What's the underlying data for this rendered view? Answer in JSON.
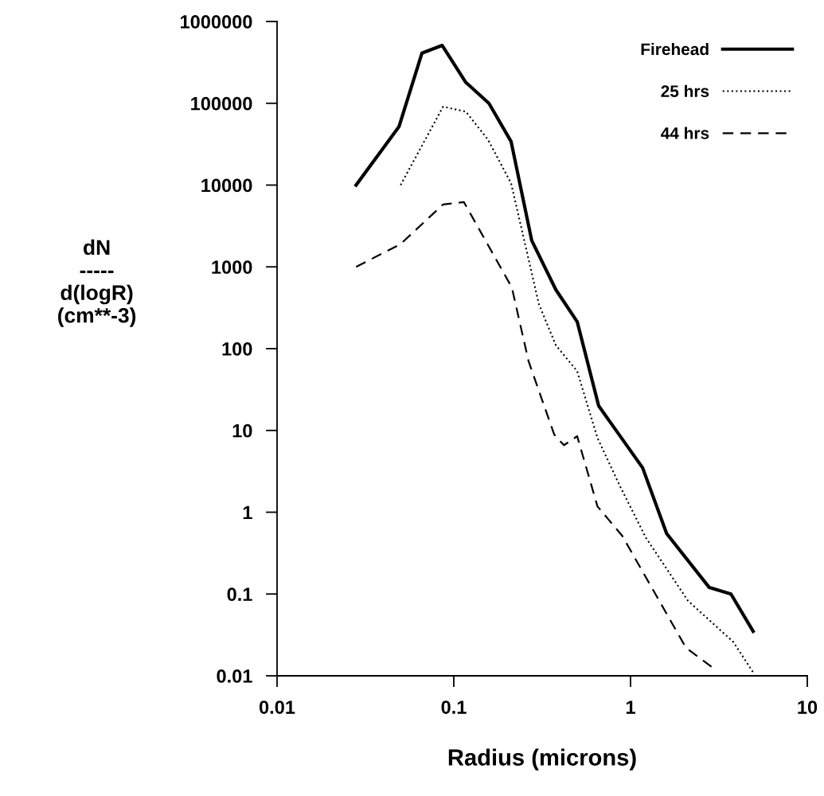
{
  "chart_data": {
    "type": "line",
    "xlabel": "Radius (microns)",
    "ylabel": "dN\n-----\nd(logR)\n(cm**-3)",
    "log": "xy",
    "xlim": [
      0.01,
      10
    ],
    "ylim": [
      0.01,
      1000000
    ],
    "xticks": [
      0.01,
      0.1,
      1,
      10
    ],
    "yticks": [
      0.01,
      0.1,
      1,
      10,
      100,
      1000,
      10000,
      100000,
      1000000
    ],
    "grid": false,
    "legend": "top right",
    "series": [
      {
        "name": "Firehead",
        "color": "#000000",
        "line_style": "solid",
        "x": [
          0.028,
          0.049,
          0.066,
          0.086,
          0.117,
          0.158,
          0.211,
          0.276,
          0.378,
          0.499,
          0.66,
          1.17,
          1.6,
          2.79,
          3.7,
          4.94
        ],
        "values": [
          10000,
          52000,
          410000,
          510000,
          180000,
          100000,
          34000,
          2100,
          525,
          214,
          20,
          3.5,
          0.55,
          0.12,
          0.1,
          0.035
        ]
      },
      {
        "name": "25 hrs",
        "color": "#000000",
        "line_style": "dotted",
        "x": [
          0.05,
          0.087,
          0.117,
          0.156,
          0.211,
          0.303,
          0.378,
          0.499,
          0.65,
          0.87,
          1.22,
          2.11,
          3.81,
          4.94
        ],
        "values": [
          10000,
          91000,
          79000,
          36000,
          10500,
          350,
          110,
          53,
          8.1,
          2.1,
          0.49,
          0.083,
          0.026,
          0.011
        ]
      },
      {
        "name": "44 hrs",
        "color": "#000000",
        "line_style": "dashed",
        "x": [
          0.028,
          0.05,
          0.087,
          0.114,
          0.213,
          0.265,
          0.37,
          0.42,
          0.499,
          0.65,
          0.9,
          2.06,
          3.0
        ],
        "values": [
          1000,
          1900,
          5800,
          6200,
          560,
          70,
          8.9,
          6.6,
          8.5,
          1.18,
          0.51,
          0.022,
          0.012
        ]
      }
    ]
  }
}
